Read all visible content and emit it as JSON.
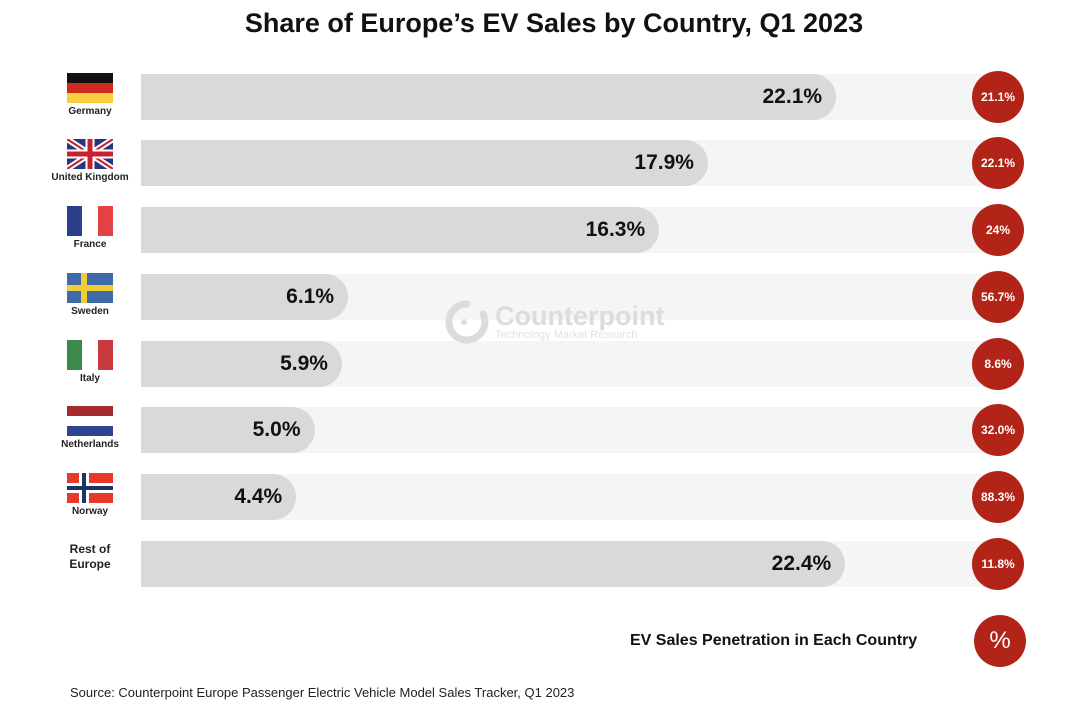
{
  "chart_data": {
    "type": "bar",
    "orientation": "horizontal",
    "title": "Share of Europe’s EV Sales by Country, Q1 2023",
    "categories": [
      "Germany",
      "United Kingdom",
      "France",
      "Sweden",
      "Italy",
      "Netherlands",
      "Norway",
      "Rest of Europe"
    ],
    "series": [
      {
        "name": "Share of Europe's EV Sales",
        "values": [
          22.1,
          17.9,
          16.3,
          6.1,
          5.9,
          5.0,
          4.4,
          22.4
        ],
        "labels": [
          "22.1%",
          "17.9%",
          "16.3%",
          "6.1%",
          "5.9%",
          "5.0%",
          "4.4%",
          "22.4%"
        ]
      },
      {
        "name": "EV Sales Penetration in Each Country",
        "values": [
          21.1,
          22.1,
          24,
          56.7,
          8.6,
          32.0,
          88.3,
          11.8
        ],
        "labels": [
          "21.1%",
          "22.1%",
          "24%",
          "56.7%",
          "8.6%",
          "32.0%",
          "88.3%",
          "11.8%"
        ]
      }
    ],
    "xlabel": "",
    "ylabel": "",
    "grid": false,
    "legend": {
      "entry": "EV Sales Penetration in Each Country",
      "symbol": "%",
      "placement": "bottom-right"
    }
  },
  "rows": [
    {
      "name": "Germany",
      "flag": "germany",
      "share": "22.1%",
      "pen": "21.1%"
    },
    {
      "name": "United Kingdom",
      "flag": "uk",
      "share": "17.9%",
      "pen": "22.1%"
    },
    {
      "name": "France",
      "flag": "france",
      "share": "16.3%",
      "pen": "24%"
    },
    {
      "name": "Sweden",
      "flag": "sweden",
      "share": "6.1%",
      "pen": "56.7%"
    },
    {
      "name": "Italy",
      "flag": "italy",
      "share": "5.9%",
      "pen": "8.6%"
    },
    {
      "name": "Netherlands",
      "flag": "netherlands",
      "share": "5.0%",
      "pen": "32.0%"
    },
    {
      "name": "Norway",
      "flag": "norway",
      "share": "4.4%",
      "pen": "88.3%"
    },
    {
      "name": "Rest of\nEurope",
      "flag": "",
      "share": "22.4%",
      "pen": "11.8%"
    }
  ],
  "watermark": {
    "brand": "Counterpoint",
    "tagline": "Technology Market Research"
  },
  "legend_label": "EV Sales Penetration in Each Country",
  "legend_symbol": "%",
  "source": "Source: Counterpoint Europe Passenger Electric Vehicle Model Sales Tracker, Q1 2023",
  "colors": {
    "bar": "#d9d9d9",
    "track": "#f5f5f5",
    "circle": "#b22418"
  }
}
